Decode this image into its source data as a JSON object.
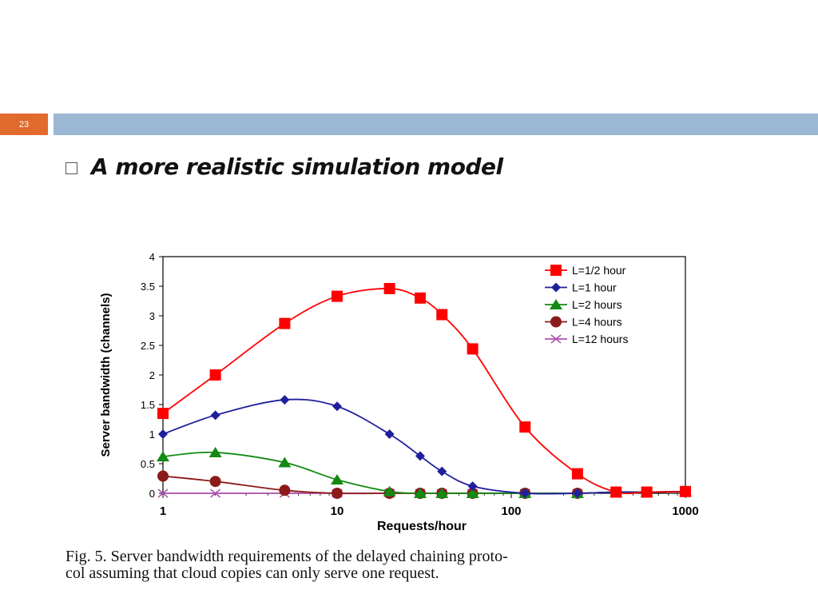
{
  "slide": {
    "number": "23",
    "bullet": "A more realistic simulation model",
    "caption_line1": "Fig. 5.  Server bandwidth requirements of the delayed chaining proto-",
    "caption_line2": "col assuming that cloud copies can only serve one request."
  },
  "colors": {
    "slide_number_bg": "#e16a2d",
    "band": "#9bb7d3"
  },
  "chart_data": {
    "type": "line",
    "xlabel": "Requests/hour",
    "ylabel": "Server bandwidth (channels)",
    "x_scale": "log",
    "xlim": [
      1,
      1000
    ],
    "ylim": [
      0,
      4
    ],
    "x_ticks": [
      1,
      10,
      100,
      1000
    ],
    "x_tick_labels": [
      "1",
      "10",
      "100",
      "1000"
    ],
    "y_ticks": [
      0,
      0.5,
      1,
      1.5,
      2,
      2.5,
      3,
      3.5,
      4
    ],
    "y_tick_labels": [
      "0",
      "0.5",
      "1",
      "1.5",
      "2",
      "2.5",
      "3",
      "3.5",
      "4"
    ],
    "legend_position": "top-right",
    "series": [
      {
        "name": "L=1/2 hour",
        "color": "#ff0000",
        "marker": "square",
        "x": [
          1,
          2,
          5,
          10,
          20,
          30,
          40,
          60,
          120,
          240,
          400,
          600,
          1000
        ],
        "y": [
          1.35,
          2.0,
          2.87,
          3.33,
          3.46,
          3.3,
          3.02,
          2.44,
          1.12,
          0.33,
          0.02,
          0.02,
          0.03
        ]
      },
      {
        "name": "L=1 hour",
        "color": "#1f1f9e",
        "marker": "diamond",
        "x": [
          1,
          2,
          5,
          10,
          20,
          30,
          40,
          60,
          120,
          240,
          400,
          600,
          1000
        ],
        "y": [
          1.0,
          1.32,
          1.58,
          1.47,
          1.0,
          0.63,
          0.37,
          0.12,
          0.0,
          0.0,
          0.02,
          0.02,
          0.03
        ]
      },
      {
        "name": "L=2 hours",
        "color": "#138a13",
        "marker": "triangle",
        "x": [
          1,
          2,
          5,
          10,
          20,
          30,
          40,
          60,
          120,
          240,
          400,
          600,
          1000
        ],
        "y": [
          0.62,
          0.69,
          0.52,
          0.23,
          0.03,
          0.0,
          0.0,
          0.0,
          0.0,
          0.0,
          0.02,
          0.02,
          0.03
        ]
      },
      {
        "name": "L=4 hours",
        "color": "#8b1a1a",
        "marker": "circle",
        "x": [
          1,
          2,
          5,
          10,
          20,
          30,
          40,
          60,
          120,
          240,
          400,
          600,
          1000
        ],
        "y": [
          0.29,
          0.2,
          0.05,
          0.0,
          0.0,
          0.0,
          0.0,
          0.0,
          0.0,
          0.0,
          0.02,
          0.02,
          0.03
        ]
      },
      {
        "name": "L=12 hours",
        "color": "#b050b0",
        "marker": "x",
        "x": [
          1,
          2,
          5,
          10,
          20,
          30,
          40,
          60,
          120,
          240,
          400,
          600,
          1000
        ],
        "y": [
          0.0,
          0.0,
          0.0,
          0.0,
          0.0,
          0.0,
          0.0,
          0.0,
          0.0,
          0.0,
          0.02,
          0.02,
          0.03
        ]
      }
    ]
  }
}
